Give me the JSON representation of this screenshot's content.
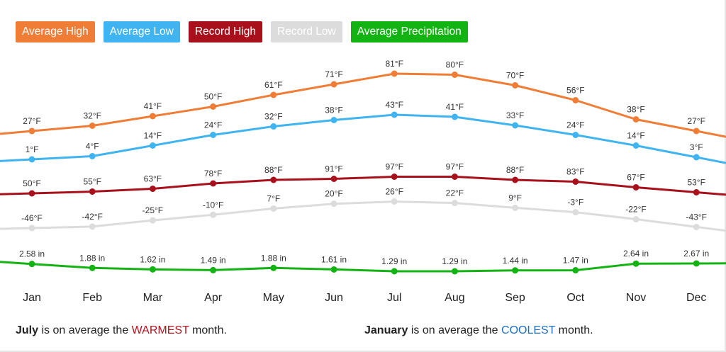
{
  "legend": {
    "avg_high": "Average High",
    "avg_low": "Average Low",
    "record_high": "Record High",
    "record_low": "Record Low",
    "avg_precip": "Average Precipitation"
  },
  "summary": {
    "warm_month": "July",
    "warm_mid": " is on average the ",
    "warm_word": "WARMEST",
    "warm_end": " month.",
    "cool_month": "January",
    "cool_mid": " is on average the ",
    "cool_word": "COOLEST",
    "cool_end": " month."
  },
  "colors": {
    "avg_high": "#f07d36",
    "avg_low": "#3fb4f0",
    "record_high": "#a8101c",
    "record_low": "#dcdcdc",
    "avg_precip": "#12b312",
    "warm_text": "#b1141b",
    "cool_text": "#1a6fc0"
  },
  "chart_data": {
    "type": "line",
    "categories": [
      "Jan",
      "Feb",
      "Mar",
      "Apr",
      "May",
      "Jun",
      "Jul",
      "Aug",
      "Sep",
      "Oct",
      "Nov",
      "Dec"
    ],
    "series": [
      {
        "key": "avg_high",
        "name": "Average High",
        "values": [
          27,
          32,
          41,
          50,
          61,
          71,
          81,
          80,
          70,
          56,
          38,
          27
        ],
        "labels": [
          "27°F",
          "32°F",
          "41°F",
          "50°F",
          "61°F",
          "71°F",
          "81°F",
          "80°F",
          "70°F",
          "56°F",
          "38°F",
          "27°F"
        ]
      },
      {
        "key": "avg_low",
        "name": "Average Low",
        "values": [
          1,
          4,
          14,
          24,
          32,
          38,
          43,
          41,
          33,
          24,
          14,
          3
        ],
        "labels": [
          "1°F",
          "4°F",
          "14°F",
          "24°F",
          "32°F",
          "38°F",
          "43°F",
          "41°F",
          "33°F",
          "24°F",
          "14°F",
          "3°F"
        ]
      },
      {
        "key": "record_high",
        "name": "Record High",
        "values": [
          50,
          55,
          63,
          78,
          88,
          91,
          97,
          97,
          88,
          83,
          67,
          53
        ],
        "labels": [
          "50°F",
          "55°F",
          "63°F",
          "78°F",
          "88°F",
          "91°F",
          "97°F",
          "97°F",
          "88°F",
          "83°F",
          "67°F",
          "53°F"
        ]
      },
      {
        "key": "record_low",
        "name": "Record Low",
        "values": [
          -46,
          -42,
          -25,
          -10,
          7,
          20,
          26,
          22,
          9,
          -3,
          -22,
          -43
        ],
        "labels": [
          "-46°F",
          "-42°F",
          "-25°F",
          "-10°F",
          "7°F",
          "20°F",
          "26°F",
          "22°F",
          "9°F",
          "-3°F",
          "-22°F",
          "-43°F"
        ]
      },
      {
        "key": "avg_precip",
        "name": "Average Precipitation",
        "values": [
          2.58,
          1.88,
          1.62,
          1.49,
          1.88,
          1.61,
          1.29,
          1.29,
          1.44,
          1.47,
          2.64,
          2.67
        ],
        "labels": [
          "2.58 in",
          "1.88 in",
          "1.62 in",
          "1.49 in",
          "1.88 in",
          "1.61 in",
          "1.29 in",
          "1.29 in",
          "1.44 in",
          "1.47 in",
          "2.64 in",
          "2.67 in"
        ]
      }
    ]
  }
}
